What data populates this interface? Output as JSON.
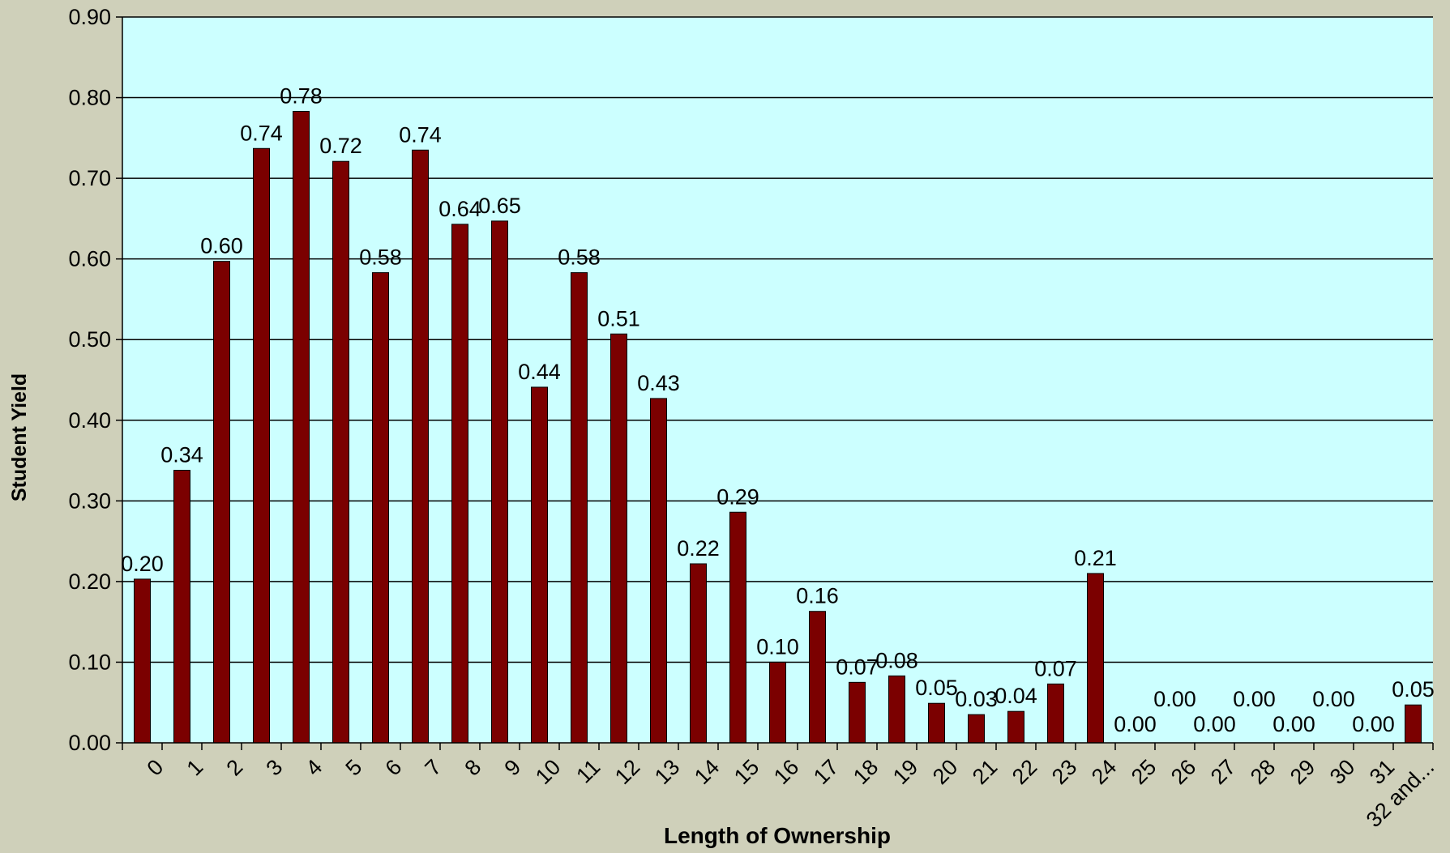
{
  "chart_data": {
    "type": "bar",
    "title": "",
    "xlabel": "Length of Ownership",
    "ylabel": "Student Yield",
    "ylim": [
      0,
      0.9
    ],
    "yticks": [
      "0.00",
      "0.10",
      "0.20",
      "0.30",
      "0.40",
      "0.50",
      "0.60",
      "0.70",
      "0.80",
      "0.90"
    ],
    "grid": true,
    "legend": "none",
    "categories": [
      "0",
      "1",
      "2",
      "3",
      "4",
      "5",
      "6",
      "7",
      "8",
      "9",
      "10",
      "11",
      "12",
      "13",
      "14",
      "15",
      "16",
      "17",
      "18",
      "19",
      "20",
      "21",
      "22",
      "23",
      "24",
      "25",
      "26",
      "27",
      "28",
      "29",
      "30",
      "31",
      "32 and..."
    ],
    "values": [
      0.203,
      0.338,
      0.597,
      0.737,
      0.783,
      0.721,
      0.583,
      0.735,
      0.643,
      0.647,
      0.441,
      0.583,
      0.507,
      0.427,
      0.222,
      0.286,
      0.1,
      0.163,
      0.075,
      0.083,
      0.049,
      0.035,
      0.039,
      0.073,
      0.21,
      0.0,
      0.0,
      0.0,
      0.0,
      0.0,
      0.0,
      0.0,
      0.047
    ],
    "labels": [
      "0.20",
      "0.34",
      "0.60",
      "0.74",
      "0.78",
      "0.72",
      "0.58",
      "0.74",
      "0.64",
      "0.65",
      "0.44",
      "0.58",
      "0.51",
      "0.43",
      "0.22",
      "0.29",
      "0.10",
      "0.16",
      "0.07",
      "0.08",
      "0.05",
      "0.03",
      "0.04",
      "0.07",
      "0.21",
      "0.00",
      "0.00",
      "0.00",
      "0.00",
      "0.00",
      "0.00",
      "0.00",
      "0.05"
    ],
    "colors": {
      "bar": "#7b0000",
      "plot_background": "#ccffff",
      "page_background": "#cfd0ba",
      "grid": "#000000"
    }
  }
}
